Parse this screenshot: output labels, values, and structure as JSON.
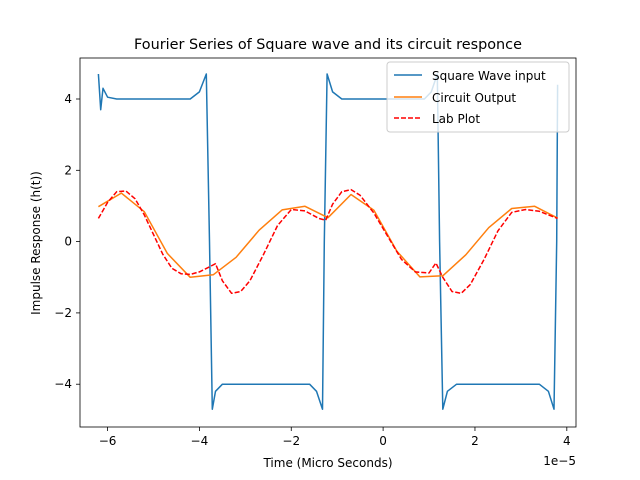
{
  "chart_data": {
    "type": "line",
    "title": "Fourier Series of Square wave and its circuit responce",
    "xlabel": "Time (Micro Seconds)",
    "ylabel": "Impulse Response (h(t))",
    "x_offset_label": "1e−5",
    "xlim": [
      -6.6e-05,
      4.2e-05
    ],
    "ylim": [
      -5.2,
      5.15
    ],
    "xticks": [
      -6e-05,
      -4e-05,
      -2e-05,
      0,
      2e-05,
      4e-05
    ],
    "xtick_labels": [
      "−6",
      "−4",
      "−2",
      "0",
      "2",
      "4"
    ],
    "yticks": [
      -4,
      -2,
      0,
      2,
      4
    ],
    "ytick_labels": [
      "−4",
      "−2",
      "0",
      "2",
      "4"
    ],
    "grid": false,
    "legend_position": "top-right",
    "series": [
      {
        "name": "Square Wave input",
        "color": "#1f77b4",
        "style": "solid",
        "x": [
          -6.2e-05,
          -6.15e-05,
          -6.1e-05,
          -6e-05,
          -5.8e-05,
          -5e-05,
          -4.2e-05,
          -4e-05,
          -3.85e-05,
          -3.78e-05,
          -3.72e-05,
          -3.65e-05,
          -3.5e-05,
          -3e-05,
          -2e-05,
          -1.6e-05,
          -1.45e-05,
          -1.32e-05,
          -1.28e-05,
          -1.22e-05,
          -1.1e-05,
          -9e-06,
          0,
          9e-06,
          1.05e-05,
          1.18e-05,
          1.23e-05,
          1.3e-05,
          1.4e-05,
          1.6e-05,
          2.5e-05,
          3.4e-05,
          3.6e-05,
          3.72e-05,
          3.78e-05,
          3.8e-05
        ],
        "y": [
          4.7,
          3.7,
          4.3,
          4.05,
          4.0,
          4.0,
          4.0,
          4.2,
          4.7,
          0.0,
          -4.7,
          -4.2,
          -4.0,
          -4.0,
          -4.0,
          -4.0,
          -4.2,
          -4.7,
          0.0,
          4.7,
          4.2,
          4.0,
          4.0,
          4.0,
          4.2,
          4.7,
          0.0,
          -4.7,
          -4.2,
          -4.0,
          -4.0,
          -4.0,
          -4.2,
          -4.7,
          0.0,
          4.4
        ]
      },
      {
        "name": "Circuit Output",
        "color": "#ff7f0e",
        "style": "solid",
        "x": [
          -6.2e-05,
          -5.7e-05,
          -5.2e-05,
          -4.7e-05,
          -4.2e-05,
          -3.7e-05,
          -3.2e-05,
          -2.7e-05,
          -2.2e-05,
          -1.7e-05,
          -1.2e-05,
          -7e-06,
          -2e-06,
          3e-06,
          8e-06,
          1.3e-05,
          1.8e-05,
          2.3e-05,
          2.8e-05,
          3.3e-05,
          3.8e-05
        ],
        "y": [
          0.98,
          1.36,
          0.84,
          -0.33,
          -1.0,
          -0.93,
          -0.44,
          0.32,
          0.89,
          0.99,
          0.67,
          1.32,
          0.88,
          -0.27,
          -0.99,
          -0.96,
          -0.37,
          0.39,
          0.93,
          0.99,
          0.66
        ]
      },
      {
        "name": "Lab Plot",
        "color": "#ff0000",
        "style": "dashed",
        "x": [
          -6.2e-05,
          -6e-05,
          -5.8e-05,
          -5.6e-05,
          -5.4e-05,
          -5.2e-05,
          -5e-05,
          -4.8e-05,
          -4.6e-05,
          -4.4e-05,
          -4.2e-05,
          -4e-05,
          -3.8e-05,
          -3.65e-05,
          -3.5e-05,
          -3.3e-05,
          -3.1e-05,
          -2.9e-05,
          -2.6e-05,
          -2.3e-05,
          -2e-05,
          -1.7e-05,
          -1.4e-05,
          -1.25e-05,
          -1.1e-05,
          -9e-06,
          -7e-06,
          -5e-06,
          -2e-06,
          1e-06,
          4e-06,
          7e-06,
          1e-05,
          1.15e-05,
          1.3e-05,
          1.5e-05,
          1.7e-05,
          1.9e-05,
          2.2e-05,
          2.5e-05,
          2.8e-05,
          3.1e-05,
          3.4e-05,
          3.6e-05,
          3.8e-05
        ],
        "y": [
          0.65,
          1.1,
          1.4,
          1.42,
          1.2,
          0.75,
          0.2,
          -0.35,
          -0.75,
          -0.9,
          -0.92,
          -0.85,
          -0.72,
          -0.62,
          -1.1,
          -1.45,
          -1.4,
          -1.1,
          -0.35,
          0.45,
          0.9,
          0.86,
          0.65,
          0.6,
          1.05,
          1.4,
          1.46,
          1.3,
          0.8,
          0.15,
          -0.5,
          -0.85,
          -0.88,
          -0.6,
          -1.0,
          -1.4,
          -1.45,
          -1.2,
          -0.5,
          0.3,
          0.82,
          0.9,
          0.85,
          0.75,
          0.65
        ]
      }
    ]
  }
}
